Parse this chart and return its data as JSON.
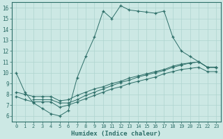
{
  "xlabel": "Humidex (Indice chaleur)",
  "ylabel": "",
  "background_color": "#cce8e4",
  "line_color": "#2d6e68",
  "grid_color": "#afd4cf",
  "xlim": [
    -0.5,
    23.5
  ],
  "ylim": [
    5.5,
    16.5
  ],
  "xticks": [
    0,
    1,
    2,
    3,
    4,
    5,
    6,
    7,
    8,
    9,
    10,
    11,
    12,
    13,
    14,
    15,
    16,
    17,
    18,
    19,
    20,
    21,
    22,
    23
  ],
  "yticks": [
    6,
    7,
    8,
    9,
    10,
    11,
    12,
    13,
    14,
    15,
    16
  ],
  "line1_x": [
    0,
    1,
    2,
    3,
    4,
    5,
    6,
    7,
    8,
    9,
    10,
    11,
    12,
    13,
    14,
    15,
    16,
    17,
    18,
    19,
    20,
    21,
    22,
    23
  ],
  "line1_y": [
    10.0,
    8.2,
    7.2,
    6.7,
    6.2,
    6.0,
    6.5,
    9.5,
    11.5,
    13.3,
    15.7,
    15.0,
    16.2,
    15.8,
    15.7,
    15.6,
    15.5,
    15.7,
    13.3,
    12.0,
    11.5,
    11.0,
    10.5,
    10.5
  ],
  "line2_x": [
    2,
    3,
    4,
    5,
    6,
    7,
    8,
    9,
    10,
    11,
    12,
    13,
    14,
    15,
    16,
    17,
    18,
    19,
    20,
    21,
    22,
    23
  ],
  "line2_y": [
    7.5,
    7.5,
    7.5,
    7.2,
    7.2,
    7.5,
    7.9,
    8.2,
    8.5,
    8.8,
    9.1,
    9.3,
    9.6,
    9.8,
    10.0,
    10.2,
    10.5,
    10.7,
    10.9,
    11.0,
    10.5,
    10.5
  ],
  "line3_x": [
    0,
    1,
    2,
    3,
    4,
    5,
    6,
    7,
    8,
    9,
    10,
    11,
    12,
    13,
    14,
    15,
    16,
    17,
    18,
    19,
    20,
    21,
    22,
    23
  ],
  "line3_y": [
    8.2,
    8.0,
    7.8,
    7.8,
    7.8,
    7.4,
    7.5,
    7.9,
    8.2,
    8.5,
    8.7,
    9.0,
    9.2,
    9.5,
    9.7,
    9.9,
    10.1,
    10.3,
    10.6,
    10.8,
    10.9,
    11.0,
    10.5,
    10.5
  ],
  "line4_x": [
    0,
    1,
    2,
    3,
    4,
    5,
    6,
    7,
    8,
    9,
    10,
    11,
    12,
    13,
    14,
    15,
    16,
    17,
    18,
    19,
    20,
    21,
    22,
    23
  ],
  "line4_y": [
    7.8,
    7.5,
    7.3,
    7.3,
    7.3,
    6.8,
    7.0,
    7.3,
    7.6,
    7.9,
    8.2,
    8.5,
    8.7,
    9.0,
    9.2,
    9.4,
    9.6,
    9.9,
    10.1,
    10.3,
    10.4,
    10.5,
    10.1,
    10.1
  ]
}
